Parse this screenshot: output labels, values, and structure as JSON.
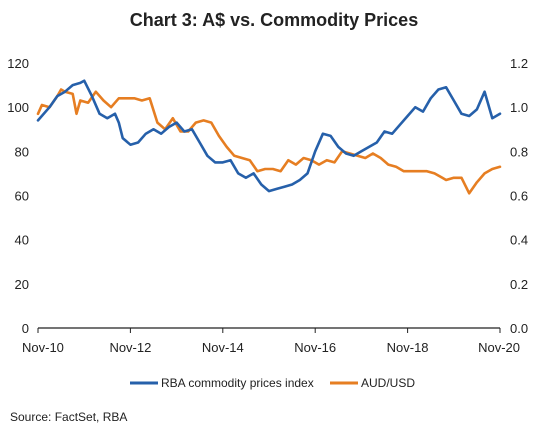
{
  "title": "Chart 3: A$ vs. Commodity Prices",
  "source": "Source: FactSet, RBA",
  "colors": {
    "commodity": "#2660AA",
    "audusd": "#E67E22",
    "axis": "#222222"
  },
  "chart_data": {
    "type": "line",
    "title": "Chart 3: A$ vs. Commodity Prices",
    "x_tick_labels": [
      "Nov-10",
      "Nov-12",
      "Nov-14",
      "Nov-16",
      "Nov-18",
      "Nov-20"
    ],
    "x_range": [
      "Nov-10",
      "Nov-20"
    ],
    "y_left": {
      "range": [
        0,
        120
      ],
      "ticks": [
        "0",
        "20",
        "40",
        "60",
        "80",
        "100",
        "120"
      ]
    },
    "y_right": {
      "range": [
        0.0,
        1.2
      ],
      "ticks": [
        "0.0",
        "0.2",
        "0.4",
        "0.6",
        "0.8",
        "1.0",
        "1.2"
      ]
    },
    "legend_position": "bottom",
    "grid": false,
    "series": [
      {
        "name": "RBA commodity prices index",
        "axis": "left",
        "x": [
          "Nov-10",
          "Feb-11",
          "Apr-11",
          "Jun-11",
          "Aug-11",
          "Oct-11",
          "Nov-11",
          "Jan-12",
          "Mar-12",
          "May-12",
          "Jul-12",
          "Aug-12",
          "Sep-12",
          "Nov-12",
          "Jan-13",
          "Mar-13",
          "May-13",
          "Jul-13",
          "Sep-13",
          "Nov-13",
          "Jan-14",
          "Mar-14",
          "May-14",
          "Jul-14",
          "Sep-14",
          "Nov-14",
          "Jan-15",
          "Mar-15",
          "May-15",
          "Jul-15",
          "Sep-15",
          "Nov-15",
          "Jan-16",
          "Mar-16",
          "May-16",
          "Jul-16",
          "Sep-16",
          "Nov-16",
          "Jan-17",
          "Mar-17",
          "May-17",
          "Jul-17",
          "Sep-17",
          "Nov-17",
          "Jan-18",
          "Mar-18",
          "May-18",
          "Jul-18",
          "Sep-18",
          "Nov-18",
          "Jan-19",
          "Mar-19",
          "May-19",
          "Jul-19",
          "Sep-19",
          "Nov-19",
          "Jan-20",
          "Mar-20",
          "May-20",
          "Jul-20",
          "Sep-20",
          "Nov-20"
        ],
        "values": [
          94,
          100,
          105,
          107,
          110,
          111,
          112,
          105,
          97,
          95,
          97,
          93,
          86,
          83,
          84,
          88,
          90,
          88,
          91,
          93,
          89,
          90,
          84,
          78,
          75,
          75,
          76,
          70,
          68,
          70,
          65,
          62,
          63,
          64,
          65,
          67,
          70,
          80,
          88,
          87,
          82,
          79,
          78,
          80,
          82,
          84,
          89,
          88,
          92,
          96,
          100,
          98,
          104,
          108,
          109,
          103,
          97,
          96,
          99,
          107,
          95,
          97
        ]
      },
      {
        "name": "AUD/USD",
        "axis": "right",
        "x": [
          "Nov-10",
          "Dec-10",
          "Feb-11",
          "Apr-11",
          "May-11",
          "Jun-11",
          "Aug-11",
          "Sep-11",
          "Oct-11",
          "Dec-11",
          "Feb-12",
          "Apr-12",
          "Jun-12",
          "Aug-12",
          "Oct-12",
          "Dec-12",
          "Feb-13",
          "Apr-13",
          "Jun-13",
          "Aug-13",
          "Oct-13",
          "Dec-13",
          "Feb-14",
          "Apr-14",
          "Jun-14",
          "Aug-14",
          "Oct-14",
          "Dec-14",
          "Feb-15",
          "Apr-15",
          "Jun-15",
          "Aug-15",
          "Oct-15",
          "Dec-15",
          "Feb-16",
          "Apr-16",
          "Jun-16",
          "Aug-16",
          "Oct-16",
          "Dec-16",
          "Feb-17",
          "Apr-17",
          "Jun-17",
          "Aug-17",
          "Oct-17",
          "Dec-17",
          "Feb-18",
          "Apr-18",
          "Jun-18",
          "Aug-18",
          "Oct-18",
          "Dec-18",
          "Feb-19",
          "Apr-19",
          "Jun-19",
          "Aug-19",
          "Sep-19",
          "Nov-19",
          "Jan-20",
          "Mar-20",
          "May-20",
          "Jul-20",
          "Sep-20",
          "Nov-20"
        ],
        "values": [
          0.97,
          1.01,
          1.0,
          1.05,
          1.08,
          1.07,
          1.06,
          0.97,
          1.03,
          1.02,
          1.07,
          1.03,
          1.0,
          1.04,
          1.04,
          1.04,
          1.03,
          1.04,
          0.93,
          0.9,
          0.95,
          0.89,
          0.89,
          0.93,
          0.94,
          0.93,
          0.87,
          0.82,
          0.78,
          0.77,
          0.76,
          0.71,
          0.72,
          0.72,
          0.71,
          0.76,
          0.74,
          0.77,
          0.76,
          0.74,
          0.76,
          0.75,
          0.8,
          0.79,
          0.78,
          0.77,
          0.79,
          0.77,
          0.74,
          0.73,
          0.71,
          0.71,
          0.71,
          0.71,
          0.7,
          0.68,
          0.67,
          0.68,
          0.68,
          0.61,
          0.66,
          0.7,
          0.72,
          0.73
        ]
      }
    ]
  }
}
